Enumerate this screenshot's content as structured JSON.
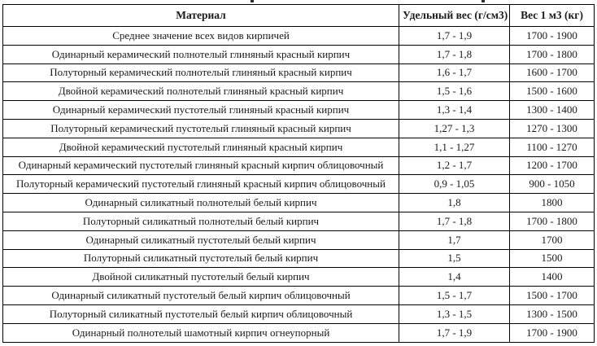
{
  "table": {
    "headers": {
      "material": "Материал",
      "specific_weight": "Удельный вес (г/см3)",
      "weight_per_m3": "Вес 1 м3 (кг)"
    },
    "rows": [
      {
        "material": "Среднее значение всех видов кирпичей",
        "specific_weight": "1,7 - 1,9",
        "weight_per_m3": "1700 - 1900"
      },
      {
        "material": "Одинарный керамический полнотелый глиняный красный кирпич",
        "specific_weight": "1,7 - 1,8",
        "weight_per_m3": "1700 - 1800"
      },
      {
        "material": "Полуторный керамический полнотелый глиняный красный кирпич",
        "specific_weight": "1,6 - 1,7",
        "weight_per_m3": "1600 - 1700"
      },
      {
        "material": "Двойной керамический полнотелый глиняный красный кирпич",
        "specific_weight": "1,5 - 1,6",
        "weight_per_m3": "1500 - 1600"
      },
      {
        "material": "Одинарный керамический пустотелый глиняный красный кирпич",
        "specific_weight": "1,3 - 1,4",
        "weight_per_m3": "1300 - 1400"
      },
      {
        "material": "Полуторный керамический пустотелый глиняный красный кирпич",
        "specific_weight": "1,27 - 1,3",
        "weight_per_m3": "1270 - 1300"
      },
      {
        "material": "Двойной керамический пустотелый глиняный красный кирпич",
        "specific_weight": "1,1 - 1,27",
        "weight_per_m3": "1100 - 1270"
      },
      {
        "material": "Одинарный керамический пустотелый глиняный красный кирпич облицовочный",
        "specific_weight": "1,2 - 1,7",
        "weight_per_m3": "1200 - 1700"
      },
      {
        "material": "Полуторный керамический пустотелый глиняный красный кирпич облицовочный",
        "specific_weight": "0,9 - 1,05",
        "weight_per_m3": "900 - 1050"
      },
      {
        "material": "Одинарный силикатный полнотелый белый кирпич",
        "specific_weight": "1,8",
        "weight_per_m3": "1800"
      },
      {
        "material": "Полуторный силикатный полнотелый белый кирпич",
        "specific_weight": "1,7 - 1,8",
        "weight_per_m3": "1700 - 1800"
      },
      {
        "material": "Одинарный силикатный пустотелый белый кирпич",
        "specific_weight": "1,7",
        "weight_per_m3": "1700"
      },
      {
        "material": "Полуторный силикатный пустотелый белый кирпич",
        "specific_weight": "1,5",
        "weight_per_m3": "1500"
      },
      {
        "material": "Двойной силикатный пустотелый белый кирпич",
        "specific_weight": "1,4",
        "weight_per_m3": "1400"
      },
      {
        "material": "Одинарный силикатный пустотелый белый кирпич облицовочный",
        "specific_weight": "1,5 - 1,7",
        "weight_per_m3": "1500 - 1700"
      },
      {
        "material": "Полуторный силикатный пустотелый белый кирпич облицовочный",
        "specific_weight": "1,3 - 1,5",
        "weight_per_m3": "1300 - 1500"
      },
      {
        "material": "Одинарный полнотелый шамотный кирпич огнеупорный",
        "specific_weight": "1,7 - 1,9",
        "weight_per_m3": "1700 - 1900"
      }
    ]
  },
  "colors": {
    "border": "#000000",
    "text": "#1a1a1a",
    "background": "#ffffff"
  }
}
